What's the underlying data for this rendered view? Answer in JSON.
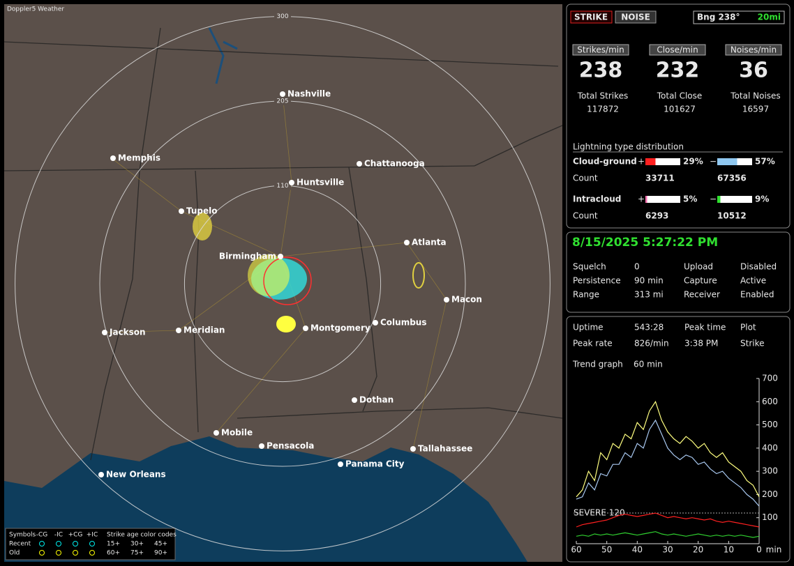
{
  "map": {
    "title": "Doppler5 Weather",
    "rings": [
      300,
      205,
      110
    ],
    "cities": [
      "Nashville",
      "Memphis",
      "Chattanooga",
      "Huntsville",
      "Tupelo",
      "Atlanta",
      "Birmingham",
      "Macon",
      "Columbus",
      "Montgomery",
      "Jackson",
      "Meridian",
      "Dothan",
      "Mobile",
      "Pensacola",
      "Tallahassee",
      "Panama City",
      "New Orleans"
    ],
    "legend": {
      "symbols": "Symbols",
      "columns": [
        "-CG",
        "-IC",
        "+CG",
        "+IC"
      ],
      "age_title": "Strike age color codes",
      "rows": [
        "Recent",
        "Old"
      ],
      "recent_ages": [
        "15+",
        "30+",
        "45+"
      ],
      "old_ages": [
        "60+",
        "75+",
        "90+"
      ]
    }
  },
  "status": {
    "strike": "STRIKE",
    "noise": "NOISE",
    "bearing": "Bng 238°",
    "distance": "20mi"
  },
  "rates": [
    {
      "header": "Strikes/min",
      "value": 238,
      "total_label": "Total Strikes",
      "total": 117872
    },
    {
      "header": "Close/min",
      "value": 232,
      "total_label": "Total Close",
      "total": 101627
    },
    {
      "header": "Noises/min",
      "value": 36,
      "total_label": "Total Noises",
      "total": 16597
    }
  ],
  "distribution": {
    "title": "Lightning type distribution",
    "rows": [
      {
        "name": "Cloud-ground",
        "count_label": "Count",
        "pos_sign": "+",
        "pos_pct": 29,
        "pos_label": "29%",
        "neg_sign": "−",
        "neg_pct": 57,
        "neg_label": "57%",
        "pos_count": 33711,
        "neg_count": 67356
      },
      {
        "name": "Intracloud",
        "count_label": "Count",
        "pos_sign": "+",
        "pos_pct": 5,
        "pos_label": "5%",
        "neg_sign": "−",
        "neg_pct": 9,
        "neg_label": "9%",
        "pos_count": 6293,
        "neg_count": 10512
      }
    ]
  },
  "clock": "8/15/2025 5:27:22 PM",
  "settings": [
    [
      "Squelch",
      "0",
      "Upload",
      "Disabled"
    ],
    [
      "Persistence",
      "90 min",
      "Capture",
      "Active"
    ],
    [
      "Range",
      "313 mi",
      "Receiver",
      "Enabled"
    ]
  ],
  "stats": [
    [
      "Uptime",
      "543:28",
      "Peak time",
      "Plot"
    ],
    [
      "Peak rate",
      "826/min",
      "3:38 PM",
      "Strike"
    ]
  ],
  "trend": {
    "label": "Trend graph",
    "window": "60 min",
    "chart": {
      "type": "line",
      "xlim": [
        60,
        0
      ],
      "ylim": [
        0,
        700
      ],
      "xticks": [
        60,
        50,
        40,
        30,
        20,
        10,
        0
      ],
      "x_unit": "min",
      "yticks": [
        100,
        200,
        300,
        400,
        500,
        600,
        700
      ],
      "severe": {
        "label": "SEVERE 120",
        "value": 120
      },
      "x": [
        60,
        58,
        56,
        54,
        52,
        50,
        48,
        46,
        44,
        42,
        40,
        38,
        36,
        34,
        32,
        30,
        28,
        26,
        24,
        22,
        20,
        18,
        16,
        14,
        12,
        10,
        8,
        6,
        4,
        2,
        0
      ],
      "series": [
        {
          "color": "#ffff80",
          "values": [
            190,
            220,
            300,
            260,
            380,
            350,
            420,
            400,
            460,
            440,
            510,
            480,
            560,
            600,
            520,
            470,
            440,
            420,
            450,
            430,
            400,
            420,
            380,
            360,
            380,
            340,
            320,
            300,
            260,
            240,
            190
          ]
        },
        {
          "color": "#a8c8f0",
          "values": [
            180,
            190,
            250,
            220,
            290,
            280,
            330,
            330,
            380,
            360,
            420,
            400,
            480,
            520,
            460,
            400,
            370,
            350,
            370,
            360,
            330,
            340,
            310,
            290,
            300,
            270,
            250,
            230,
            200,
            180,
            150
          ]
        },
        {
          "color": "#ff2020",
          "values": [
            60,
            70,
            75,
            80,
            85,
            90,
            100,
            110,
            115,
            110,
            105,
            110,
            115,
            120,
            110,
            100,
            105,
            100,
            95,
            100,
            95,
            90,
            95,
            85,
            80,
            85,
            80,
            75,
            70,
            65,
            60
          ]
        },
        {
          "color": "#30d030",
          "values": [
            20,
            25,
            20,
            30,
            25,
            30,
            25,
            30,
            35,
            30,
            25,
            30,
            35,
            40,
            30,
            25,
            30,
            25,
            20,
            25,
            30,
            25,
            20,
            25,
            20,
            25,
            20,
            25,
            20,
            15,
            20
          ]
        }
      ]
    }
  }
}
